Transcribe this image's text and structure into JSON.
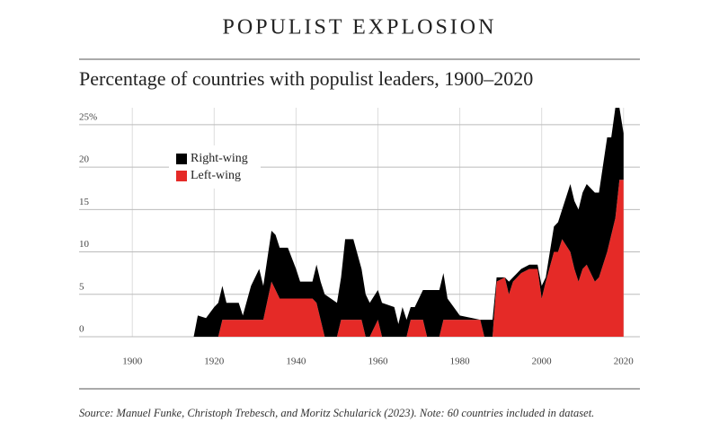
{
  "chart_data": {
    "type": "area",
    "title": "POPULIST EXPLOSION",
    "subtitle": "Percentage of countries with populist leaders, 1900–2020",
    "source": "Source: Manuel Funke, Christoph Trebesch, and Moritz Schularick (2023). Note: 60 countries included in dataset.",
    "x": [
      1915,
      1916,
      1918,
      1920,
      1921,
      1922,
      1923,
      1926,
      1927,
      1929,
      1931,
      1932,
      1934,
      1935,
      1936,
      1938,
      1940,
      1941,
      1944,
      1945,
      1946,
      1947,
      1950,
      1951,
      1952,
      1954,
      1956,
      1957,
      1958,
      1960,
      1961,
      1964,
      1965,
      1966,
      1967,
      1968,
      1969,
      1971,
      1972,
      1975,
      1976,
      1977,
      1980,
      1985,
      1986,
      1988,
      1989,
      1991,
      1992,
      1993,
      1995,
      1997,
      1999,
      2000,
      2001,
      2003,
      2004,
      2005,
      2007,
      2008,
      2009,
      2010,
      2011,
      2013,
      2014,
      2016,
      2017,
      2018,
      2019,
      2020
    ],
    "series": [
      {
        "name": "Right-wing",
        "color": "#000000",
        "values": [
          0,
          2.5,
          2.2,
          3.5,
          4,
          4,
          2,
          2,
          0.5,
          4,
          6,
          4,
          6,
          6.5,
          6,
          6,
          3.5,
          2,
          2,
          4.5,
          4.5,
          5,
          4,
          5,
          9.5,
          9.5,
          6,
          5,
          4,
          3.5,
          4,
          3.5,
          1.5,
          3.5,
          2,
          1.5,
          1.5,
          3.5,
          5.5,
          5.5,
          5.5,
          2.5,
          0.5,
          0,
          2,
          2,
          0.5,
          0,
          1.5,
          0.5,
          0.5,
          0.5,
          0.5,
          1.5,
          0.5,
          3,
          3.5,
          3.5,
          8,
          8,
          8.5,
          9,
          9.5,
          10.5,
          10,
          13.5,
          11.5,
          13,
          8.5,
          5.5
        ]
      },
      {
        "name": "Left-wing",
        "color": "#e52a27",
        "values": [
          0,
          0,
          0,
          0,
          0,
          2,
          2,
          2,
          2,
          2,
          2,
          2,
          6.5,
          5.5,
          4.5,
          4.5,
          4.5,
          4.5,
          4.5,
          4,
          2,
          0,
          0,
          2,
          2,
          2,
          2,
          0,
          0,
          2,
          0,
          0,
          0,
          0,
          0,
          2,
          2,
          2,
          0,
          0,
          2,
          2,
          2,
          2,
          0,
          0,
          6.5,
          7,
          5,
          6.5,
          7.5,
          8,
          8,
          4.5,
          6.5,
          10,
          10,
          11.5,
          10,
          8,
          6.5,
          8,
          8.5,
          6.5,
          7,
          10,
          12,
          14,
          18.5,
          18.5
        ]
      }
    ],
    "xlim": [
      1887,
      2024
    ],
    "xticks": [
      1900,
      1920,
      1940,
      1960,
      1980,
      2000,
      2020
    ],
    "ylim": [
      0,
      27
    ],
    "yticks": [
      0,
      5,
      10,
      15,
      20,
      {
        "value": 25,
        "label": "25%"
      }
    ],
    "grid": true
  }
}
